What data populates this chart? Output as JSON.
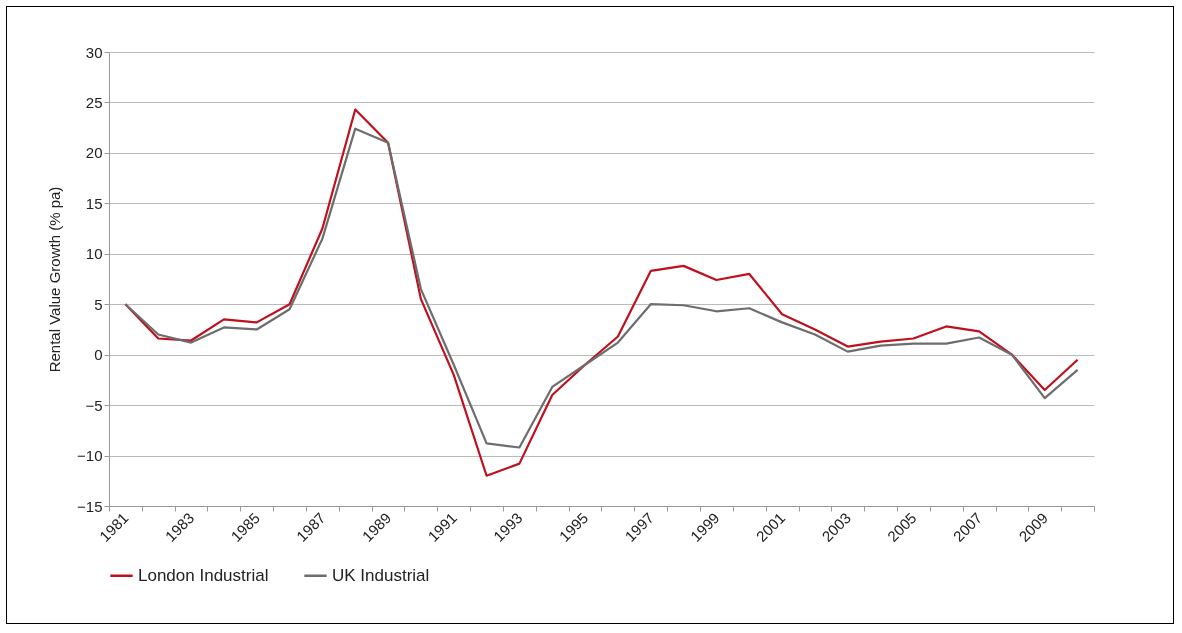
{
  "chart_data": {
    "type": "line",
    "ylabel": "Rental Value Growth (% pa)",
    "categories": [
      "1981",
      null,
      "1983",
      null,
      "1985",
      null,
      "1987",
      null,
      "1989",
      null,
      "1991",
      null,
      "1993",
      null,
      "1995",
      null,
      "1997",
      null,
      "1999",
      null,
      "2001",
      null,
      "2003",
      null,
      "2005",
      null,
      "2007",
      null,
      "2009",
      null
    ],
    "series": [
      {
        "name": "London Industrial",
        "color": "#c0101e",
        "values": [
          5.0,
          1.6,
          1.4,
          3.5,
          3.2,
          5.0,
          12.5,
          24.3,
          21.0,
          5.5,
          -2.0,
          -12.0,
          -10.8,
          -4.0,
          -1.0,
          1.8,
          8.3,
          8.8,
          7.4,
          8.0,
          4.0,
          2.5,
          0.8,
          1.3,
          1.6,
          2.8,
          2.3,
          0.0,
          -3.5,
          -0.5
        ]
      },
      {
        "name": "UK Industrial",
        "color": "#6d6d6d",
        "values": [
          5.0,
          2.0,
          1.2,
          2.7,
          2.5,
          4.5,
          11.5,
          22.4,
          21.0,
          6.5,
          -1.0,
          -8.8,
          -9.2,
          -3.2,
          -1.0,
          1.2,
          5.0,
          4.9,
          4.3,
          4.6,
          3.2,
          2.0,
          0.3,
          0.9,
          1.1,
          1.1,
          1.7,
          0.0,
          -4.3,
          -1.5
        ]
      }
    ],
    "ylim": [
      -15,
      30
    ],
    "yticks": [
      -15,
      -10,
      -5,
      0,
      5,
      10,
      15,
      20,
      25,
      30
    ],
    "grid": "y",
    "legend": "bottom",
    "line_style": "solid",
    "marker": "none"
  }
}
